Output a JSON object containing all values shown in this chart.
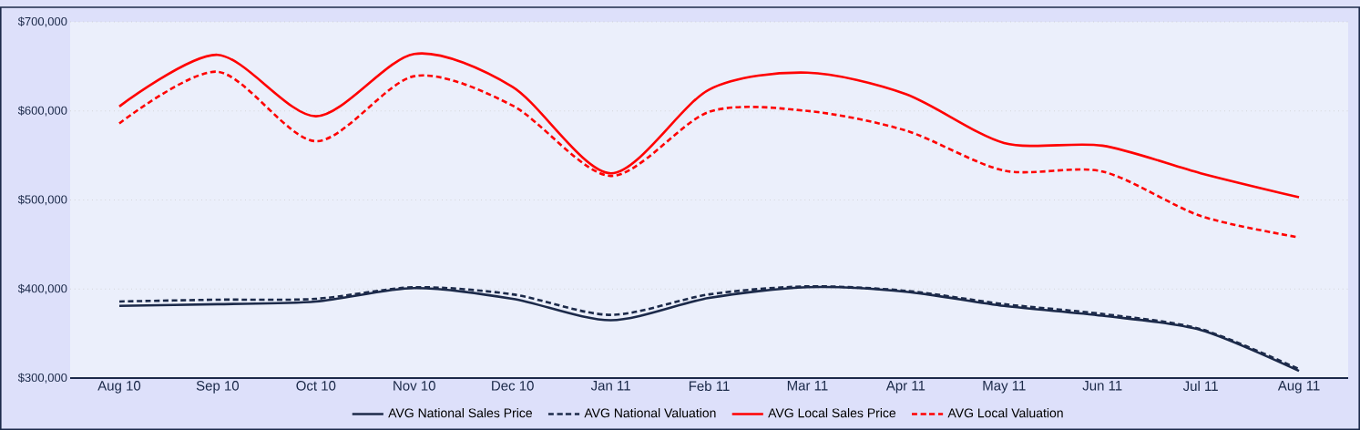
{
  "chart_data": {
    "type": "line",
    "categories": [
      "Aug 10",
      "Sep 10",
      "Oct 10",
      "Nov 10",
      "Dec 10",
      "Jan 11",
      "Feb 11",
      "Mar 11",
      "Apr 11",
      "May 11",
      "Jun 11",
      "Jul 11",
      "Aug 11"
    ],
    "series": [
      {
        "name": "AVG National Sales Price",
        "color": "#1c2a4a",
        "line_style": "solid",
        "values": [
          381000,
          383000,
          386000,
          401000,
          389000,
          365000,
          390000,
          402000,
          397000,
          381000,
          370000,
          354000,
          308000
        ]
      },
      {
        "name": "AVG National Valuation",
        "color": "#1c2a4a",
        "line_style": "dashed",
        "values": [
          386000,
          388000,
          389000,
          402000,
          394000,
          371000,
          394000,
          403000,
          398000,
          383000,
          372000,
          355000,
          310000
        ]
      },
      {
        "name": "AVG Local Sales Price",
        "color": "#ff0000",
        "line_style": "solid",
        "values": [
          605000,
          663000,
          594000,
          664000,
          627000,
          530000,
          624000,
          643000,
          619000,
          564000,
          561000,
          530000,
          503000
        ]
      },
      {
        "name": "AVG Local Valuation",
        "color": "#ff0000",
        "line_style": "dashed",
        "values": [
          586000,
          644000,
          566000,
          639000,
          606000,
          527000,
          599000,
          600000,
          578000,
          533000,
          532000,
          482000,
          458000
        ]
      }
    ],
    "ylim": [
      300000,
      700000
    ],
    "yticks": [
      {
        "value": 300000,
        "label": "$300,000"
      },
      {
        "value": 400000,
        "label": "$400,000"
      },
      {
        "value": 500000,
        "label": "$500,000"
      },
      {
        "value": 600000,
        "label": "$600,000"
      },
      {
        "value": 700000,
        "label": "$700,000"
      }
    ],
    "grid": "y",
    "legend": "bottom",
    "marker": "none"
  }
}
